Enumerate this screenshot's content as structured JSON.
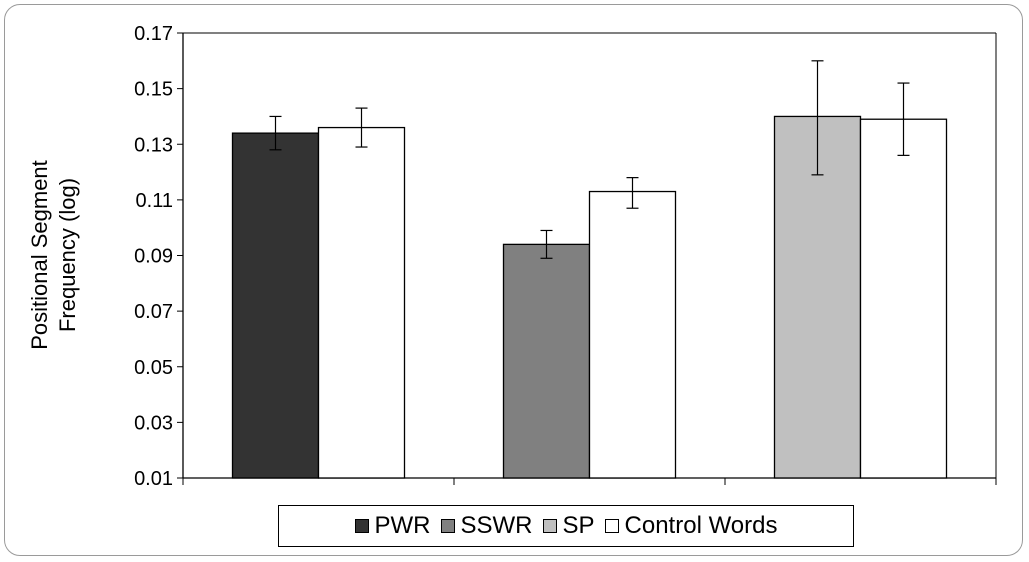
{
  "chart_data": {
    "type": "bar",
    "title": "",
    "ylabel": "Positional Segment Frequency (log)",
    "ylabel_lines": [
      "Positional Segment",
      "Frequency (log)"
    ],
    "xlabel": "",
    "ylim": [
      0.01,
      0.17
    ],
    "y_ticks": [
      "0.01",
      "0.03",
      "0.05",
      "0.07",
      "0.09",
      "0.11",
      "0.13",
      "0.15",
      "0.17"
    ],
    "grid": false,
    "legend_position": "bottom",
    "groups": [
      {
        "bars": [
          {
            "series": "PWR",
            "value": 0.134,
            "err_low": 0.128,
            "err_high": 0.14
          },
          {
            "series": "Control Words",
            "value": 0.136,
            "err_low": 0.129,
            "err_high": 0.143
          }
        ]
      },
      {
        "bars": [
          {
            "series": "SSWR",
            "value": 0.094,
            "err_low": 0.089,
            "err_high": 0.099
          },
          {
            "series": "Control Words",
            "value": 0.113,
            "err_low": 0.107,
            "err_high": 0.118
          }
        ]
      },
      {
        "bars": [
          {
            "series": "SP",
            "value": 0.14,
            "err_low": 0.119,
            "err_high": 0.16
          },
          {
            "series": "Control Words",
            "value": 0.139,
            "err_low": 0.126,
            "err_high": 0.152
          }
        ]
      }
    ],
    "series": [
      {
        "name": "PWR",
        "color": "#333333"
      },
      {
        "name": "SSWR",
        "color": "#808080"
      },
      {
        "name": "SP",
        "color": "#c0c0c0"
      },
      {
        "name": "Control Words",
        "color": "#ffffff"
      }
    ]
  }
}
